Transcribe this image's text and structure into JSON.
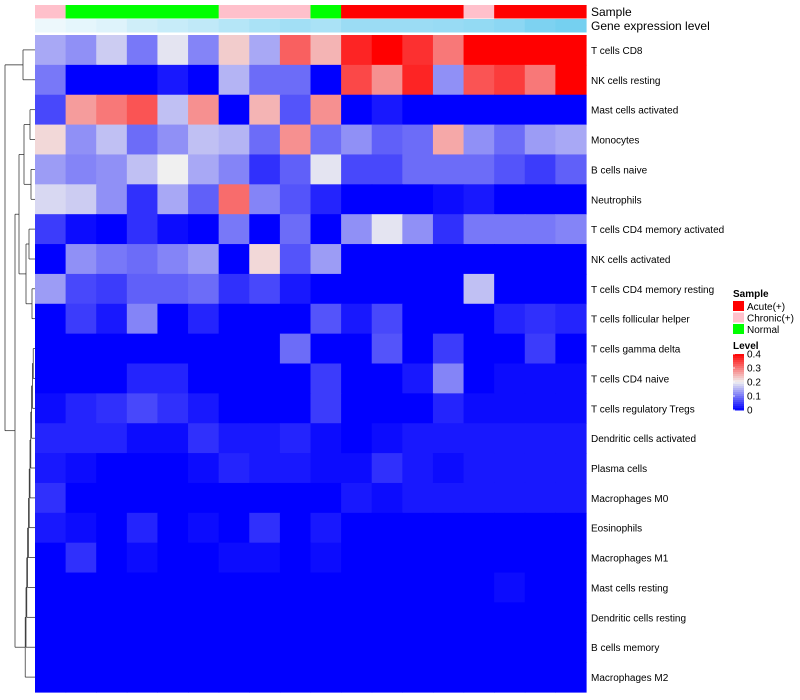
{
  "chart_data": {
    "type": "heatmap",
    "title": "",
    "xlabel": "",
    "ylabel": "",
    "annotation_tracks": [
      {
        "name": "Sample",
        "values": [
          "Chronic(+)",
          "Normal",
          "Normal",
          "Normal",
          "Normal",
          "Normal",
          "Chronic(+)",
          "Chronic(+)",
          "Chronic(+)",
          "Normal",
          "Acute(+)",
          "Acute(+)",
          "Acute(+)",
          "Acute(+)",
          "Chronic(+)",
          "Acute(+)",
          "Acute(+)",
          "Acute(+)"
        ]
      },
      {
        "name": "Gene expression level",
        "values": [
          0.05,
          0.1,
          0.15,
          0.25,
          0.3,
          0.35,
          0.42,
          0.5,
          0.55,
          0.5,
          0.6,
          0.6,
          0.6,
          0.62,
          0.65,
          0.7,
          0.8,
          0.85
        ]
      }
    ],
    "rows": [
      "T cells CD8",
      "NK cells resting",
      "Mast cells activated",
      "Monocytes",
      "B cells naive",
      "Neutrophils",
      "T cells CD4 memory activated",
      "NK cells activated",
      "T cells CD4 memory resting",
      "T cells follicular helper",
      "T cells gamma delta",
      "T cells CD4 naive",
      "T cells regulatory  Tregs",
      "Dendritic cells activated",
      "Plasma cells",
      "Macrophages M0",
      "Eosinophils",
      "Macrophages M1",
      "Mast cells resting",
      "Dendritic cells resting",
      "B cells memory",
      "Macrophages M2"
    ],
    "values": [
      [
        0.14,
        0.12,
        0.17,
        0.1,
        0.19,
        0.11,
        0.23,
        0.14,
        0.32,
        0.25,
        0.37,
        0.4,
        0.36,
        0.3,
        0.4,
        0.4,
        0.4,
        0.4
      ],
      [
        0.1,
        0.0,
        0.0,
        0.0,
        0.02,
        0.0,
        0.15,
        0.09,
        0.09,
        0.0,
        0.34,
        0.28,
        0.37,
        0.12,
        0.33,
        0.35,
        0.3,
        0.4
      ],
      [
        0.06,
        0.27,
        0.3,
        0.33,
        0.16,
        0.28,
        0.0,
        0.25,
        0.07,
        0.28,
        0.0,
        0.02,
        0.0,
        0.0,
        0.0,
        0.0,
        0.0,
        0.0
      ],
      [
        0.22,
        0.12,
        0.16,
        0.09,
        0.12,
        0.16,
        0.15,
        0.09,
        0.28,
        0.09,
        0.12,
        0.08,
        0.09,
        0.26,
        0.12,
        0.09,
        0.13,
        0.14
      ],
      [
        0.13,
        0.11,
        0.12,
        0.16,
        0.2,
        0.14,
        0.11,
        0.04,
        0.08,
        0.19,
        0.06,
        0.06,
        0.09,
        0.09,
        0.09,
        0.07,
        0.05,
        0.08
      ],
      [
        0.18,
        0.17,
        0.12,
        0.04,
        0.14,
        0.08,
        0.31,
        0.11,
        0.07,
        0.03,
        0.0,
        0.0,
        0.0,
        0.01,
        0.02,
        0.0,
        0.0,
        0.0
      ],
      [
        0.05,
        0.01,
        0.0,
        0.04,
        0.01,
        0.0,
        0.1,
        0.0,
        0.09,
        0.0,
        0.12,
        0.19,
        0.12,
        0.04,
        0.1,
        0.1,
        0.1,
        0.11
      ],
      [
        0.0,
        0.12,
        0.1,
        0.09,
        0.11,
        0.13,
        0.0,
        0.22,
        0.07,
        0.13,
        0.0,
        0.0,
        0.0,
        0.0,
        0.0,
        0.0,
        0.0,
        0.0
      ],
      [
        0.13,
        0.06,
        0.05,
        0.08,
        0.08,
        0.09,
        0.04,
        0.06,
        0.02,
        0.0,
        0.0,
        0.0,
        0.0,
        0.0,
        0.16,
        0.0,
        0.0,
        0.0
      ],
      [
        0.0,
        0.05,
        0.02,
        0.11,
        0.0,
        0.03,
        0.0,
        0.0,
        0.0,
        0.07,
        0.02,
        0.06,
        0.0,
        0.0,
        0.0,
        0.03,
        0.04,
        0.03
      ],
      [
        0.0,
        0.0,
        0.0,
        0.0,
        0.0,
        0.0,
        0.0,
        0.0,
        0.09,
        0.0,
        0.0,
        0.07,
        0.0,
        0.05,
        0.0,
        0.0,
        0.05,
        0.0
      ],
      [
        0.0,
        0.0,
        0.0,
        0.03,
        0.03,
        0.0,
        0.0,
        0.0,
        0.0,
        0.05,
        0.0,
        0.0,
        0.02,
        0.11,
        0.0,
        0.01,
        0.01,
        0.01
      ],
      [
        0.01,
        0.03,
        0.04,
        0.06,
        0.04,
        0.02,
        0.0,
        0.0,
        0.0,
        0.05,
        0.0,
        0.0,
        0.0,
        0.03,
        0.01,
        0.01,
        0.01,
        0.01
      ],
      [
        0.03,
        0.03,
        0.03,
        0.01,
        0.01,
        0.04,
        0.02,
        0.02,
        0.03,
        0.01,
        0.0,
        0.01,
        0.02,
        0.02,
        0.02,
        0.02,
        0.02,
        0.02
      ],
      [
        0.02,
        0.01,
        0.0,
        0.0,
        0.0,
        0.01,
        0.03,
        0.02,
        0.02,
        0.01,
        0.01,
        0.04,
        0.02,
        0.01,
        0.02,
        0.02,
        0.02,
        0.02
      ],
      [
        0.04,
        0.0,
        0.0,
        0.0,
        0.0,
        0.0,
        0.0,
        0.0,
        0.0,
        0.0,
        0.02,
        0.01,
        0.02,
        0.02,
        0.02,
        0.02,
        0.02,
        0.02
      ],
      [
        0.02,
        0.01,
        0.0,
        0.03,
        0.0,
        0.01,
        0.0,
        0.04,
        0.0,
        0.02,
        0.0,
        0.0,
        0.0,
        0.0,
        0.0,
        0.0,
        0.0,
        0.0
      ],
      [
        0.0,
        0.04,
        0.0,
        0.01,
        0.0,
        0.0,
        0.01,
        0.01,
        0.0,
        0.01,
        0.0,
        0.0,
        0.0,
        0.0,
        0.0,
        0.0,
        0.0,
        0.0
      ],
      [
        0.0,
        0.0,
        0.0,
        0.0,
        0.0,
        0.0,
        0.0,
        0.0,
        0.0,
        0.0,
        0.0,
        0.0,
        0.0,
        0.0,
        0.0,
        0.01,
        0.0,
        0.0
      ],
      [
        0.0,
        0.0,
        0.0,
        0.0,
        0.0,
        0.0,
        0.0,
        0.0,
        0.0,
        0.0,
        0.0,
        0.0,
        0.0,
        0.0,
        0.0,
        0.0,
        0.0,
        0.0
      ],
      [
        0.0,
        0.0,
        0.0,
        0.0,
        0.0,
        0.0,
        0.0,
        0.0,
        0.0,
        0.0,
        0.0,
        0.0,
        0.0,
        0.0,
        0.0,
        0.0,
        0.0,
        0.0
      ],
      [
        0.0,
        0.0,
        0.0,
        0.0,
        0.0,
        0.0,
        0.0,
        0.0,
        0.0,
        0.0,
        0.0,
        0.0,
        0.0,
        0.0,
        0.0,
        0.0,
        0.0,
        0.0
      ]
    ],
    "color_scale": {
      "low": "#0000ff",
      "mid": "#f0f0f0",
      "high": "#ff0000",
      "domain": [
        0,
        0.4
      ]
    },
    "legend_sample": {
      "title": "Sample",
      "entries": [
        {
          "label": "Acute(+)",
          "color": "#ff0000"
        },
        {
          "label": "Chronic(+)",
          "color": "#ffc0cb"
        },
        {
          "label": "Normal",
          "color": "#00ff00"
        }
      ]
    },
    "legend_level": {
      "title": "Level",
      "ticks": [
        {
          "label": "0.4",
          "value": 0.4
        },
        {
          "label": "0.3",
          "value": 0.3
        },
        {
          "label": "0.2",
          "value": 0.2
        },
        {
          "label": "0.1",
          "value": 0.1
        },
        {
          "label": "0",
          "value": 0
        }
      ]
    },
    "dendrogram": "left",
    "legend_placement": "right"
  }
}
